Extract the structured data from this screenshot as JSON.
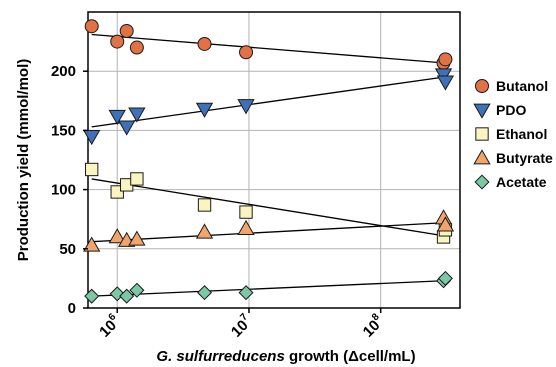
{
  "chart_data": {
    "type": "scatter",
    "title": "",
    "xlabel": "G. sulfurreducens growth (Δcell/mL)",
    "xlabel_italic_part": "G. sulfurreducens",
    "xlabel_rest": " growth (Δcell/mL)",
    "ylabel": "Production yield (mmol/mol)",
    "x_scale": "log",
    "xlim": [
      600000,
      400000000
    ],
    "ylim": [
      0,
      250
    ],
    "grid": true,
    "legend_position": "right",
    "x_ticks": [
      {
        "value": 1000000,
        "base": "10",
        "exp": "6"
      },
      {
        "value": 10000000,
        "base": "10",
        "exp": "7"
      },
      {
        "value": 100000000,
        "base": "10",
        "exp": "8"
      }
    ],
    "y_ticks": [
      0,
      50,
      100,
      150,
      200
    ],
    "series": [
      {
        "name": "Butanol",
        "marker": "circle",
        "color": "#E07246",
        "x": [
          640000,
          1000000,
          1180000,
          1410000,
          4600000,
          9500000,
          300000000,
          310000000
        ],
        "y": [
          238,
          225,
          234,
          220,
          223,
          216,
          207,
          210
        ],
        "fit": {
          "x": [
            640000,
            300000000
          ],
          "y": [
            231,
            207
          ]
        }
      },
      {
        "name": "PDO",
        "marker": "triangle-down",
        "color": "#3F71B8",
        "x": [
          640000,
          1000000,
          1180000,
          1410000,
          4600000,
          9500000,
          300000000,
          310000000
        ],
        "y": [
          145,
          162,
          153,
          164,
          168,
          171,
          197,
          191
        ],
        "fit": {
          "x": [
            640000,
            300000000
          ],
          "y": [
            153,
            195
          ]
        }
      },
      {
        "name": "Ethanol",
        "marker": "square",
        "color": "#FAF5C0",
        "x": [
          640000,
          1000000,
          1180000,
          1410000,
          4600000,
          9500000,
          300000000,
          310000000
        ],
        "y": [
          117,
          98,
          104,
          109,
          87,
          81,
          60,
          66
        ],
        "fit": {
          "x": [
            640000,
            300000000
          ],
          "y": [
            109,
            61
          ]
        }
      },
      {
        "name": "Butyrate",
        "marker": "triangle-up",
        "color": "#F1A56A",
        "x": [
          640000,
          1000000,
          1180000,
          1410000,
          4600000,
          9500000,
          300000000,
          310000000
        ],
        "y": [
          53,
          60,
          57,
          58,
          64,
          67,
          76,
          70
        ],
        "fit": {
          "x": [
            640000,
            300000000
          ],
          "y": [
            56,
            72
          ]
        }
      },
      {
        "name": "Acetate",
        "marker": "diamond",
        "color": "#7CC8A4",
        "x": [
          640000,
          1000000,
          1180000,
          1410000,
          4600000,
          9500000,
          300000000,
          310000000
        ],
        "y": [
          10,
          12,
          10,
          15,
          13,
          13,
          23,
          25
        ],
        "fit": {
          "x": [
            640000,
            300000000
          ],
          "y": [
            10,
            23
          ]
        }
      }
    ]
  }
}
